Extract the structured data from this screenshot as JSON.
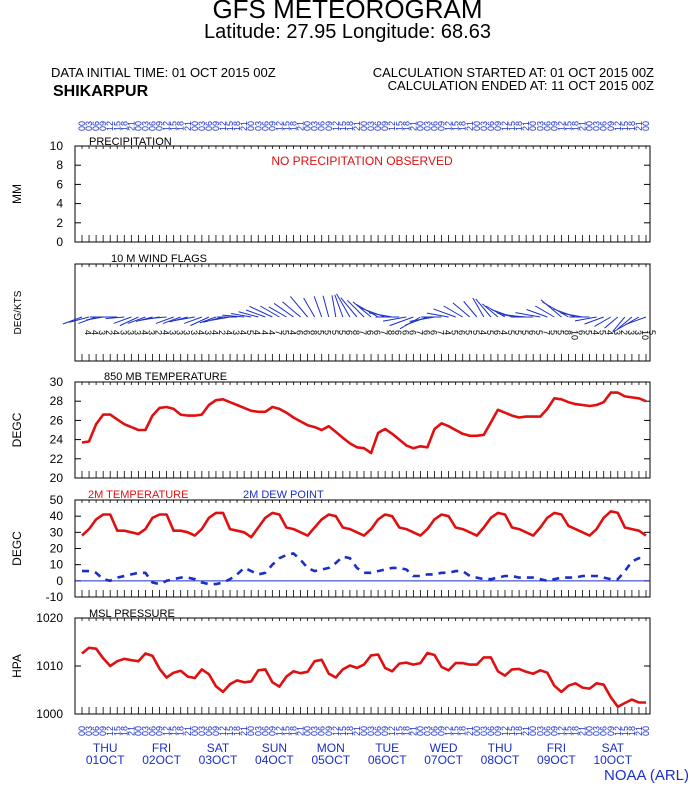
{
  "header": {
    "title": "GFS METEOROGRAM",
    "subtitle": "Latitude: 27.95 Longitude:  68.63",
    "init_time": "DATA INITIAL TIME: 01 OCT 2015 00Z",
    "station": "SHIKARPUR",
    "calc_started": "CALCULATION STARTED AT: 01 OCT 2015 00Z",
    "calc_ended": "CALCULATION ENDED AT: 11 OCT 2015 00Z"
  },
  "footer": {
    "credit": "NOAA (ARL)"
  },
  "colors": {
    "red": "#e01010",
    "blue": "#1a2fc8",
    "axis": "#000000"
  },
  "time_axis": {
    "step_hours": 3,
    "count": 81,
    "hour_labels": [
      "00",
      "03",
      "06",
      "09",
      "12",
      "15",
      "18",
      "21",
      "00",
      "03",
      "06",
      "09",
      "12",
      "15",
      "18",
      "21",
      "00",
      "03",
      "06",
      "09",
      "12",
      "15",
      "18",
      "21",
      "00",
      "03",
      "06",
      "09",
      "12",
      "15",
      "18",
      "21",
      "00",
      "03",
      "06",
      "09",
      "12",
      "15",
      "18",
      "21",
      "00",
      "03",
      "06",
      "09",
      "12",
      "15",
      "18",
      "21",
      "00",
      "03",
      "06",
      "09",
      "12",
      "15",
      "18",
      "21",
      "00",
      "03",
      "06",
      "09",
      "12",
      "15",
      "18",
      "21",
      "00",
      "03",
      "06",
      "09",
      "12",
      "15",
      "18",
      "21",
      "00",
      "03",
      "06",
      "09",
      "12",
      "15",
      "18",
      "21",
      "00"
    ],
    "days": [
      {
        "weekday": "THU",
        "date": "01OCT"
      },
      {
        "weekday": "FRI",
        "date": "02OCT"
      },
      {
        "weekday": "SAT",
        "date": "03OCT"
      },
      {
        "weekday": "SUN",
        "date": "04OCT"
      },
      {
        "weekday": "MON",
        "date": "05OCT"
      },
      {
        "weekday": "TUE",
        "date": "06OCT"
      },
      {
        "weekday": "WED",
        "date": "07OCT"
      },
      {
        "weekday": "THU",
        "date": "08OCT"
      },
      {
        "weekday": "FRI",
        "date": "09OCT"
      },
      {
        "weekday": "SAT",
        "date": "10OCT"
      }
    ]
  },
  "chart_data": [
    {
      "type": "bar",
      "title": "PRECIPITATION",
      "ylabel": "MM",
      "ylim": [
        0,
        10
      ],
      "yticks": [
        0,
        2,
        4,
        6,
        8,
        10
      ],
      "annotation": "NO PRECIPITATION OBSERVED",
      "values": []
    },
    {
      "type": "wind_barbs",
      "title": "10 M  WIND FLAGS",
      "ylabel": "DEG/KTS",
      "direction_deg": [
        250,
        255,
        250,
        260,
        270,
        270,
        265,
        250,
        245,
        250,
        255,
        260,
        265,
        250,
        250,
        255,
        260,
        250,
        245,
        250,
        255,
        260,
        270,
        275,
        280,
        285,
        290,
        295,
        300,
        300,
        305,
        310,
        320,
        330,
        340,
        345,
        350,
        340,
        330,
        320,
        315,
        310,
        300,
        290,
        280,
        270,
        260,
        250,
        240,
        250,
        260,
        270,
        280,
        290,
        300,
        310,
        320,
        330,
        320,
        310,
        300,
        290,
        280,
        275,
        270,
        280,
        290,
        300,
        310,
        300,
        290,
        280,
        270,
        260,
        250,
        240,
        230,
        220,
        230,
        240,
        250
      ],
      "speed_kts": [
        4,
        4,
        3,
        2,
        4,
        3,
        3,
        3,
        4,
        3,
        2,
        4,
        3,
        3,
        3,
        3,
        4,
        3,
        4,
        2,
        4,
        3,
        4,
        5,
        4,
        4,
        4,
        7,
        5,
        4,
        6,
        6,
        8,
        5,
        5,
        5,
        5,
        6,
        8,
        7,
        6,
        6,
        7,
        8,
        6,
        6,
        6,
        7,
        6,
        6,
        7,
        4,
        5,
        6,
        5,
        5,
        4,
        5,
        6,
        4,
        5,
        5,
        5,
        6,
        5,
        7,
        5,
        5,
        8,
        10,
        6,
        5,
        4,
        5,
        4,
        3,
        2,
        3,
        3,
        10,
        5
      ]
    },
    {
      "type": "line",
      "title": "850 MB  TEMPERATURE",
      "ylabel": "DEGC",
      "ylim": [
        20,
        30
      ],
      "yticks": [
        20,
        22,
        24,
        26,
        28,
        30
      ],
      "series": [
        {
          "values": [
            23.7,
            23.8,
            25.6,
            26.6,
            26.6,
            26.1,
            25.6,
            25.3,
            25.0,
            25.0,
            26.5,
            27.3,
            27.4,
            27.2,
            26.6,
            26.5,
            26.5,
            26.6,
            27.6,
            28.1,
            28.2,
            27.9,
            27.6,
            27.3,
            27.0,
            26.9,
            26.9,
            27.4,
            27.2,
            26.8,
            26.3,
            25.9,
            25.5,
            25.3,
            25.0,
            25.4,
            24.8,
            24.2,
            23.6,
            23.2,
            23.1,
            22.6,
            24.7,
            25.1,
            24.6,
            24.0,
            23.4,
            23.1,
            23.3,
            23.2,
            25.1,
            25.7,
            25.4,
            25.0,
            24.6,
            24.4,
            24.4,
            24.5,
            25.8,
            27.1,
            26.8,
            26.5,
            26.3,
            26.4,
            26.4,
            26.4,
            27.2,
            28.3,
            28.2,
            27.9,
            27.7,
            27.6,
            27.5,
            27.6,
            27.9,
            28.9,
            28.9,
            28.5,
            28.4,
            28.3,
            28.0
          ]
        }
      ]
    },
    {
      "type": "line",
      "title": "2M TEMPERATURE",
      "ylabel": "DEGC",
      "ylim": [
        -10,
        50
      ],
      "yticks": [
        -10,
        0,
        10,
        20,
        30,
        40,
        50
      ],
      "series": [
        {
          "name": "2M TEMPERATURE",
          "values": [
            28,
            32,
            38,
            41,
            41,
            31,
            31,
            30,
            29,
            32,
            39,
            41,
            41,
            31,
            31,
            30,
            28,
            32,
            39,
            42,
            42,
            32,
            31,
            30,
            27,
            33,
            39,
            42,
            41,
            33,
            32,
            30,
            28,
            33,
            38,
            41,
            40,
            33,
            32,
            30,
            28,
            32,
            38,
            41,
            40,
            33,
            32,
            30,
            28,
            32,
            38,
            41,
            40,
            33,
            32,
            30,
            28,
            33,
            39,
            42,
            41,
            33,
            32,
            30,
            28,
            33,
            39,
            42,
            41,
            34,
            32,
            30,
            28,
            32,
            39,
            43,
            42,
            33,
            32,
            31,
            28
          ]
        },
        {
          "name": "2M  DEW POINT",
          "values": [
            6,
            6,
            5,
            1,
            0,
            2,
            3,
            4,
            5,
            5,
            -1,
            -2,
            0,
            1,
            2,
            2,
            1,
            -1,
            -2,
            -2,
            -1,
            1,
            4,
            8,
            6,
            4,
            5,
            10,
            14,
            16,
            17,
            13,
            8,
            6,
            7,
            8,
            11,
            15,
            14,
            8,
            5,
            5,
            6,
            7,
            8,
            8,
            7,
            3,
            3,
            4,
            4,
            5,
            5,
            6,
            6,
            3,
            2,
            1,
            1,
            2,
            3,
            3,
            2,
            2,
            2,
            1,
            0,
            1,
            2,
            2,
            2,
            3,
            3,
            3,
            2,
            1,
            1,
            6,
            12,
            14,
            14
          ]
        }
      ]
    },
    {
      "type": "line",
      "title": "MSL PRESSURE",
      "ylabel": "HPA",
      "ylim": [
        1000,
        1020
      ],
      "yticks": [
        1000,
        1010,
        1020
      ],
      "series": [
        {
          "values": [
            1012.6,
            1013.8,
            1013.6,
            1011.6,
            1010.0,
            1011.0,
            1011.5,
            1011.2,
            1011.0,
            1012.6,
            1012.1,
            1009.4,
            1007.6,
            1008.6,
            1009.0,
            1007.8,
            1007.5,
            1009.3,
            1008.3,
            1005.8,
            1004.6,
            1006.2,
            1007.0,
            1006.6,
            1006.8,
            1009.1,
            1009.3,
            1006.6,
            1005.7,
            1007.8,
            1008.9,
            1008.5,
            1008.8,
            1011.0,
            1011.3,
            1008.4,
            1007.6,
            1009.3,
            1010.1,
            1009.6,
            1010.3,
            1012.2,
            1012.4,
            1009.6,
            1008.9,
            1010.5,
            1010.7,
            1010.3,
            1010.6,
            1012.7,
            1012.3,
            1009.8,
            1009.1,
            1010.6,
            1010.6,
            1010.3,
            1010.3,
            1011.8,
            1011.8,
            1008.9,
            1008.0,
            1009.3,
            1009.4,
            1008.8,
            1008.4,
            1009.1,
            1008.6,
            1005.9,
            1004.6,
            1005.9,
            1006.4,
            1005.5,
            1005.3,
            1006.4,
            1006.1,
            1003.5,
            1001.5,
            1002.3,
            1003.0,
            1002.4,
            1002.4
          ]
        }
      ]
    }
  ]
}
